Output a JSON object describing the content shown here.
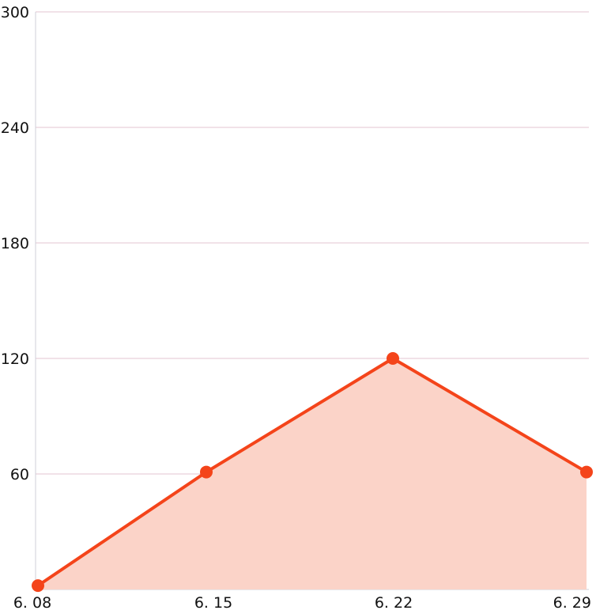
{
  "chart_data": {
    "type": "area",
    "title": "",
    "xlabel": "",
    "ylabel": "",
    "categories": [
      "6. 08",
      "6. 15",
      "6. 22",
      "6. 29"
    ],
    "series": [
      {
        "values": [
          2,
          61,
          120,
          61
        ]
      }
    ],
    "ylim": [
      0,
      300
    ],
    "yticks": [
      60,
      120,
      180,
      240,
      300
    ],
    "grid": true,
    "legend": "none",
    "colors": {
      "line": "#F4441A",
      "fill": "#FBD3C8",
      "grid": "#E3C6D1",
      "axis": "#CFCFD8",
      "text": "#111111"
    }
  }
}
